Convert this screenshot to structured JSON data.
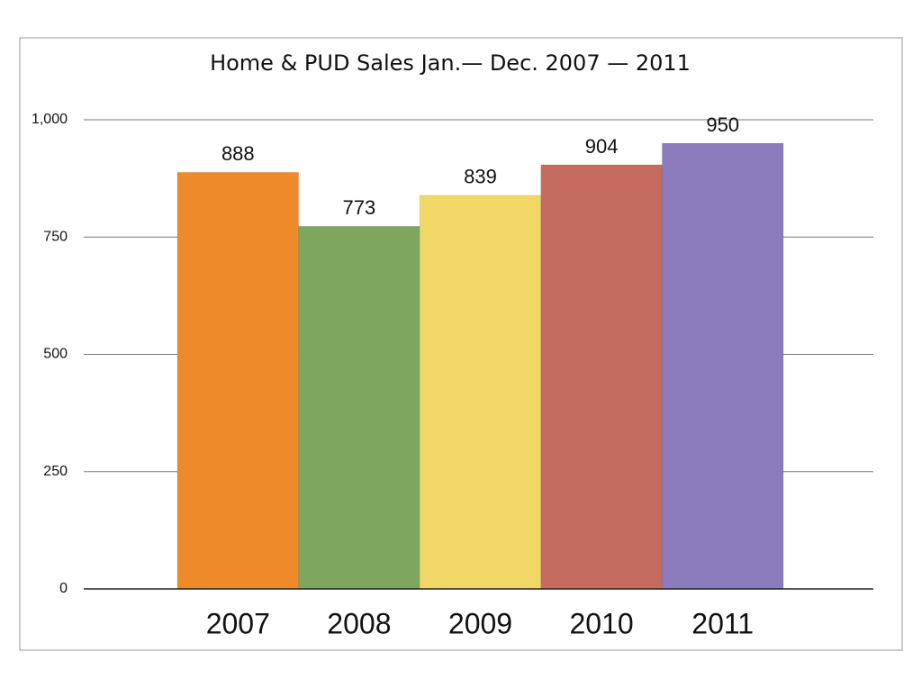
{
  "chart_data": {
    "type": "bar",
    "title": "Home & PUD Sales Jan.— Dec. 2007 — 2011",
    "categories": [
      "2007",
      "2008",
      "2009",
      "2010",
      "2011"
    ],
    "values": [
      888,
      773,
      839,
      904,
      950
    ],
    "colors": [
      "#ef8a2b",
      "#7fa65e",
      "#f1d766",
      "#c56b60",
      "#8b7bbd"
    ],
    "ylim": [
      0,
      1000
    ],
    "yticks": [
      0,
      250,
      500,
      750,
      {
        "value": 1000,
        "label": "1,000"
      }
    ],
    "grid": true
  }
}
